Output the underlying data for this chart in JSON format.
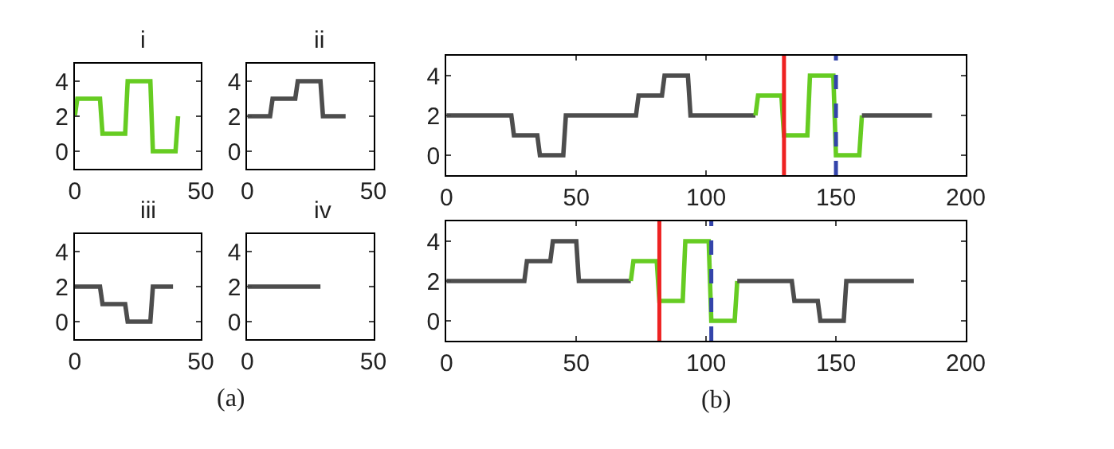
{
  "chart_data": [
    {
      "type": "line",
      "title": "i",
      "xlim": [
        0,
        50
      ],
      "xticks": [
        0,
        50
      ],
      "ylim": [
        -1,
        5
      ],
      "yticks": [
        0,
        2,
        4
      ],
      "series": [
        {
          "color": "#66cc22",
          "x": [
            0,
            1,
            10,
            11,
            20,
            21,
            30,
            31,
            40,
            41
          ],
          "values": [
            2,
            3,
            3,
            1,
            1,
            4,
            4,
            0,
            0,
            2
          ]
        }
      ]
    },
    {
      "type": "line",
      "title": "ii",
      "xlim": [
        0,
        50
      ],
      "xticks": [
        0,
        50
      ],
      "ylim": [
        -1,
        5
      ],
      "yticks": [
        0,
        2,
        4
      ],
      "series": [
        {
          "color": "#4d4d4d",
          "x": [
            0,
            9,
            10,
            19,
            20,
            29,
            30,
            39
          ],
          "values": [
            2,
            2,
            3,
            3,
            4,
            4,
            2,
            2
          ]
        }
      ]
    },
    {
      "type": "line",
      "title": "iii",
      "xlim": [
        0,
        50
      ],
      "xticks": [
        0,
        50
      ],
      "ylim": [
        -1,
        5
      ],
      "yticks": [
        0,
        2,
        4
      ],
      "annotations": [
        "(a)"
      ],
      "series": [
        {
          "color": "#4d4d4d",
          "x": [
            0,
            10,
            11,
            20,
            21,
            30,
            31,
            39
          ],
          "values": [
            2,
            2,
            1,
            1,
            0,
            0,
            2,
            2
          ]
        }
      ]
    },
    {
      "type": "line",
      "title": "iv",
      "xlim": [
        0,
        50
      ],
      "xticks": [
        0,
        50
      ],
      "ylim": [
        -1,
        5
      ],
      "yticks": [
        0,
        2,
        4
      ],
      "series": [
        {
          "color": "#4d4d4d",
          "x": [
            0,
            29
          ],
          "values": [
            2,
            2
          ]
        }
      ]
    },
    {
      "type": "line",
      "xlim": [
        0,
        200
      ],
      "xticks": [
        0,
        50,
        100,
        150,
        200
      ],
      "ylim": [
        -1,
        5
      ],
      "yticks": [
        0,
        2,
        4
      ],
      "ref_lines": [
        {
          "axis": "x",
          "value": 130,
          "color": "#ee2222",
          "line_style": "solid"
        },
        {
          "axis": "x",
          "value": 150,
          "color": "#3344aa",
          "line_style": "dashed"
        }
      ],
      "series": [
        {
          "color": "#4d4d4d",
          "x": [
            0,
            25,
            26,
            35,
            36,
            45,
            46,
            73,
            74,
            83,
            84,
            93,
            94,
            119
          ],
          "values": [
            2,
            2,
            1,
            1,
            0,
            0,
            2,
            2,
            3,
            3,
            4,
            4,
            2,
            2
          ]
        },
        {
          "color": "#66cc22",
          "x": [
            119,
            120,
            129,
            130,
            139,
            140,
            149,
            150,
            159,
            160
          ],
          "values": [
            2,
            3,
            3,
            1,
            1,
            4,
            4,
            0,
            0,
            2
          ]
        },
        {
          "color": "#4d4d4d",
          "x": [
            160,
            187
          ],
          "values": [
            2,
            2
          ]
        }
      ]
    },
    {
      "type": "line",
      "xlim": [
        0,
        200
      ],
      "xticks": [
        0,
        50,
        100,
        150,
        200
      ],
      "ylim": [
        -1,
        5
      ],
      "yticks": [
        0,
        2,
        4
      ],
      "annotations": [
        "(b)"
      ],
      "ref_lines": [
        {
          "axis": "x",
          "value": 82,
          "color": "#ee2222",
          "line_style": "solid"
        },
        {
          "axis": "x",
          "value": 102,
          "color": "#3344aa",
          "line_style": "dashed"
        }
      ],
      "series": [
        {
          "color": "#4d4d4d",
          "x": [
            0,
            30,
            31,
            40,
            41,
            50,
            51,
            71
          ],
          "values": [
            2,
            2,
            3,
            3,
            4,
            4,
            2,
            2
          ]
        },
        {
          "color": "#66cc22",
          "x": [
            71,
            72,
            81,
            82,
            91,
            92,
            101,
            102,
            111,
            112
          ],
          "values": [
            2,
            3,
            3,
            1,
            1,
            4,
            4,
            0,
            0,
            2
          ]
        },
        {
          "color": "#4d4d4d",
          "x": [
            112,
            133,
            134,
            143,
            144,
            153,
            154,
            180
          ],
          "values": [
            2,
            2,
            1,
            1,
            0,
            0,
            2,
            2
          ]
        }
      ]
    }
  ]
}
